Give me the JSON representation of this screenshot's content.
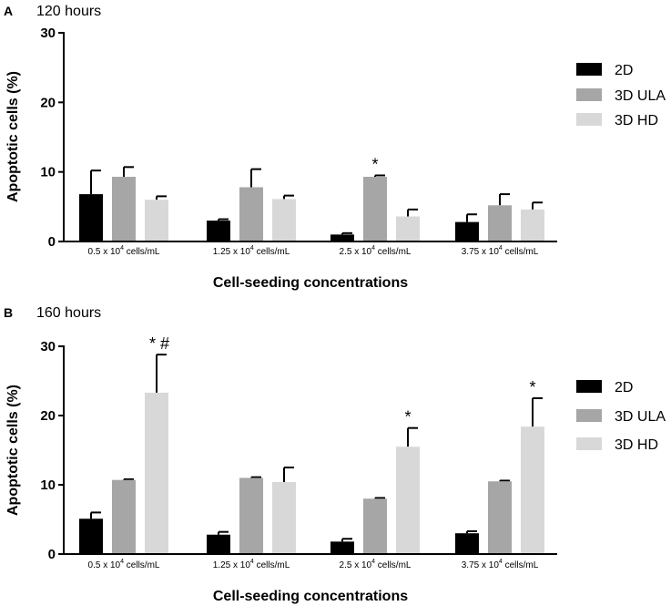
{
  "chart_data": [
    {
      "type": "bar",
      "panel_label": "A",
      "subtitle": "120 hours",
      "ylabel": "Apoptotic cells (%)",
      "xlabel": "Cell-seeding concentrations",
      "ylim": [
        0,
        30
      ],
      "yticks": [
        "0",
        "10",
        "20",
        "30"
      ],
      "categories": [
        {
          "prefix": "0.5 x 10",
          "exp": "4",
          "suffix": " cells/mL"
        },
        {
          "prefix": "1.25 x 10",
          "exp": "4",
          "suffix": " cells/mL"
        },
        {
          "prefix": "2.5 x 10",
          "exp": "4",
          "suffix": " cells/mL"
        },
        {
          "prefix": "3.75 x 10",
          "exp": "4",
          "suffix": " cells/mL"
        }
      ],
      "series": [
        {
          "name": "2D",
          "color": "#000000",
          "values": [
            6.8,
            3.0,
            1.0,
            2.8
          ],
          "errors": [
            3.4,
            0.2,
            0.2,
            1.1
          ]
        },
        {
          "name": "3D ULA",
          "color": "#a6a6a6",
          "values": [
            9.3,
            7.8,
            9.3,
            5.2
          ],
          "errors": [
            1.4,
            2.6,
            0.2,
            1.6
          ]
        },
        {
          "name": "3D HD",
          "color": "#d8d8d8",
          "values": [
            6.0,
            6.1,
            3.6,
            4.6
          ],
          "errors": [
            0.5,
            0.5,
            1.0,
            1.0
          ]
        }
      ],
      "annotations": [
        {
          "category": 2,
          "series": 1,
          "text": "*"
        }
      ]
    },
    {
      "type": "bar",
      "panel_label": "B",
      "subtitle": "160 hours",
      "ylabel": "Apoptotic cells (%)",
      "xlabel": "Cell-seeding concentrations",
      "ylim": [
        0,
        30
      ],
      "yticks": [
        "0",
        "10",
        "20",
        "30"
      ],
      "categories": [
        {
          "prefix": "0.5 x 10",
          "exp": "4",
          "suffix": " cells/mL"
        },
        {
          "prefix": "1.25 x 10",
          "exp": "4",
          "suffix": " cells/mL"
        },
        {
          "prefix": "2.5 x 10",
          "exp": "4",
          "suffix": " cells/mL"
        },
        {
          "prefix": "3.75 x 10",
          "exp": "4",
          "suffix": " cells/mL"
        }
      ],
      "series": [
        {
          "name": "2D",
          "color": "#000000",
          "values": [
            5.1,
            2.8,
            1.8,
            3.0
          ],
          "errors": [
            0.9,
            0.4,
            0.4,
            0.3
          ]
        },
        {
          "name": "3D ULA",
          "color": "#a6a6a6",
          "values": [
            10.7,
            11.0,
            8.0,
            10.5
          ],
          "errors": [
            0.1,
            0.1,
            0.1,
            0.1
          ]
        },
        {
          "name": "3D HD",
          "color": "#d8d8d8",
          "values": [
            23.3,
            10.4,
            15.5,
            18.4
          ],
          "errors": [
            5.5,
            2.1,
            2.7,
            4.1
          ]
        }
      ],
      "annotations": [
        {
          "category": 0,
          "series": 2,
          "text": "*  #"
        },
        {
          "category": 2,
          "series": 2,
          "text": "*"
        },
        {
          "category": 3,
          "series": 2,
          "text": "*"
        }
      ]
    }
  ]
}
